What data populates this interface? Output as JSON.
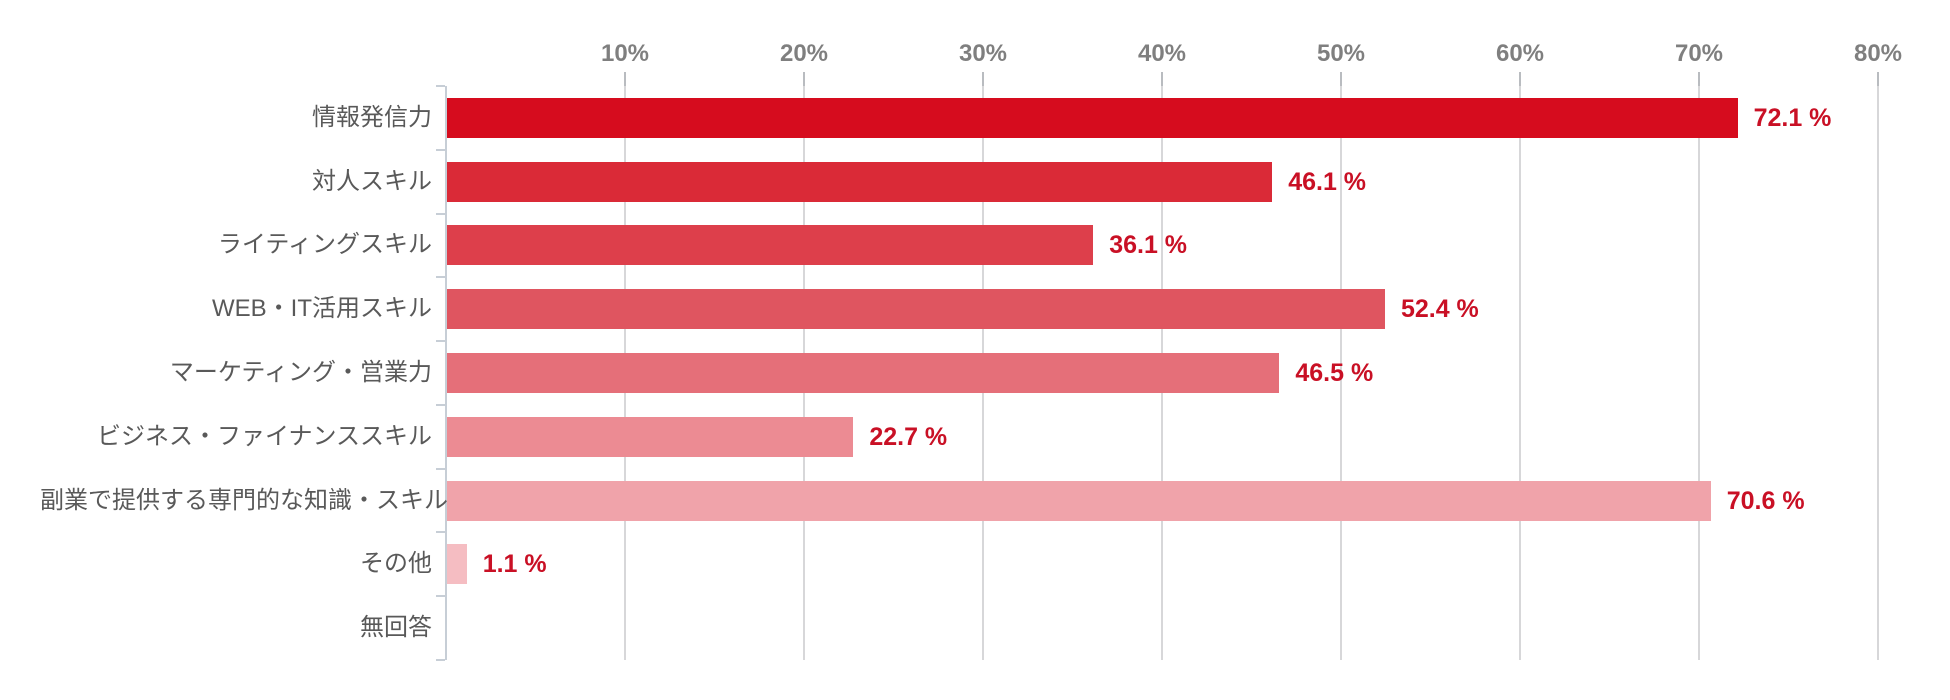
{
  "chart_data": {
    "type": "bar",
    "orientation": "horizontal",
    "title": "",
    "xlabel": "",
    "ylabel": "",
    "xlim": [
      0,
      80
    ],
    "grid": true,
    "axis_side": "top",
    "x_tick_labels": [
      "10%",
      "20%",
      "30%",
      "40%",
      "50%",
      "60%",
      "70%",
      "80%"
    ],
    "x_tick_values": [
      10,
      20,
      30,
      40,
      50,
      60,
      70,
      80
    ],
    "categories": [
      "情報発信力",
      "対人スキル",
      "ライティングスキル",
      "WEB・IT活用スキル",
      "マーケティング・営業力",
      "ビジネス・ファイナンススキル",
      "副業で提供する専門的な知識・スキル",
      "その他",
      "無回答"
    ],
    "values": [
      72.1,
      46.1,
      36.1,
      52.4,
      46.5,
      22.7,
      70.6,
      1.1,
      null
    ],
    "value_labels": [
      "72.1 %",
      "46.1 %",
      "36.1 %",
      "52.4 %",
      "46.5 %",
      "22.7 %",
      "70.6 %",
      "1.1 %",
      ""
    ],
    "bar_colors": [
      "#d60c1e",
      "#da2a37",
      "#dd3f4b",
      "#df5560",
      "#e56f79",
      "#ec8b93",
      "#f0a3aa",
      "#f5bdc2",
      null
    ]
  },
  "colors": {
    "value_label": "#c91025",
    "tick_label": "#7f7f7f",
    "category_label": "#595959",
    "gridline": "#d7d7d9",
    "axis_line": "#c7ced6",
    "background": "#ffffff"
  }
}
